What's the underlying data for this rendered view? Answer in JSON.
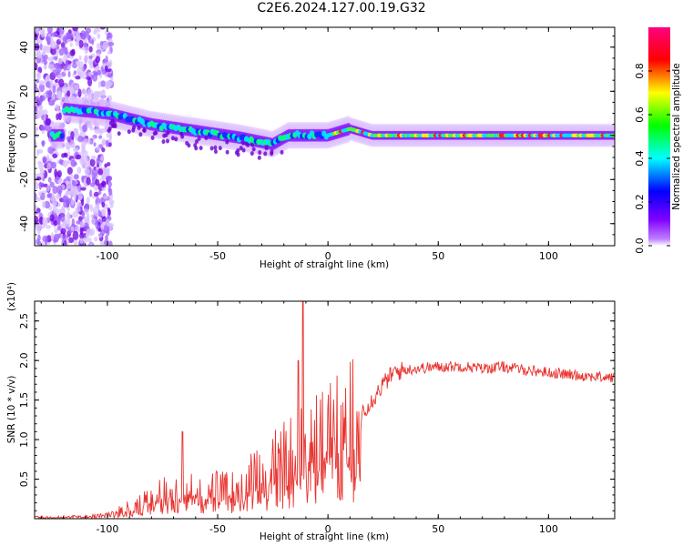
{
  "page_title": "C2E6.2024.127.00.19.G32",
  "colors": {
    "snr_line": "#e8332f",
    "spectrogram_background": "#ffffff",
    "colorbar_stops": [
      "#ffffff",
      "#8000ff",
      "#0000ff",
      "#00ffff",
      "#00ff00",
      "#ffff00",
      "#ff0000",
      "#ff0080"
    ]
  },
  "chart_data": [
    {
      "type": "heatmap",
      "title": "",
      "xlabel": "Height of straight line (km)",
      "ylabel": "Frequency (Hz)",
      "xlim": [
        -133,
        130
      ],
      "ylim": [
        -50,
        49
      ],
      "x_ticks": [
        "-100",
        "-50",
        "0",
        "50",
        "100"
      ],
      "y_ticks": [
        "-40",
        "-20",
        "0",
        "20",
        "40"
      ],
      "colorbar": {
        "label": "Normalized spectral amplitude",
        "range": [
          0,
          1
        ],
        "ticks": [
          "0.0",
          "0.2",
          "0.4",
          "0.6",
          "0.8"
        ]
      },
      "ridge": {
        "description_points_x": [
          -120,
          -100,
          -80,
          -60,
          -40,
          -25,
          -18,
          -10,
          0,
          10,
          20,
          50,
          100,
          130
        ],
        "description_points_y": [
          12,
          10,
          5,
          2,
          -1,
          -4,
          0,
          0,
          0,
          3,
          0,
          0,
          0,
          0
        ]
      }
    },
    {
      "type": "line",
      "title": "",
      "xlabel": "Height of straight line (km)",
      "ylabel": "SNR (10 * v/v)",
      "y_multiplier_label": "(x10⁴)",
      "xlim": [
        -133,
        130
      ],
      "ylim": [
        0,
        2.75
      ],
      "x_ticks": [
        "-100",
        "-50",
        "0",
        "50",
        "100"
      ],
      "y_ticks": [
        "0.5",
        "1.0",
        "1.5",
        "2.0",
        "2.5"
      ],
      "series": [
        {
          "x": [
            -133,
            -110,
            -100,
            -95,
            -90,
            -85,
            -80,
            -75,
            -70,
            -65,
            -60,
            -55,
            -50,
            -45,
            -40,
            -35,
            -30,
            -25,
            -20,
            -15,
            -12,
            -10,
            -5,
            0,
            5,
            10,
            15,
            20,
            25,
            30,
            35,
            40,
            50,
            60,
            70,
            80,
            90,
            100,
            110,
            120,
            130
          ],
          "y": [
            0.02,
            0.03,
            0.06,
            0.1,
            0.15,
            0.2,
            0.28,
            0.35,
            0.4,
            0.43,
            0.4,
            0.35,
            0.4,
            0.38,
            0.45,
            0.55,
            0.6,
            0.7,
            0.85,
            0.9,
            0.95,
            1.0,
            1.05,
            1.15,
            1.25,
            1.3,
            1.35,
            1.5,
            1.7,
            1.85,
            1.88,
            1.9,
            1.92,
            1.93,
            1.9,
            1.92,
            1.88,
            1.85,
            1.82,
            1.8,
            1.78
          ]
        }
      ]
    }
  ]
}
